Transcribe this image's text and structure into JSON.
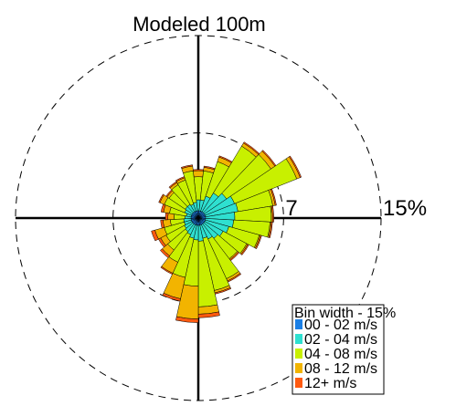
{
  "chart_data": {
    "type": "windrose",
    "title": "Modeled 100m",
    "rings": [
      {
        "value": 7,
        "label": "7"
      },
      {
        "value": 15,
        "label": "15%"
      }
    ],
    "rmax": 15,
    "directions_deg": [
      0,
      12.4,
      24.8,
      37.2,
      49.7,
      62.1,
      74.5,
      86.9,
      99.3,
      111.7,
      124.1,
      136.6,
      149.0,
      161.4,
      173.8,
      186.2,
      198.6,
      211.0,
      223.4,
      235.9,
      248.3,
      260.7,
      273.1,
      285.5,
      297.9,
      310.3,
      322.8,
      335.2,
      347.6
    ],
    "bins": [
      {
        "label": "00 - 02 m/s",
        "color": "#1a7fe6"
      },
      {
        "label": "02 - 04 m/s",
        "color": "#2fe0d0"
      },
      {
        "label": "04 - 08 m/s",
        "color": "#c8f000"
      },
      {
        "label": "08 - 12 m/s",
        "color": "#f2b400"
      },
      {
        "label": "12+ m/s",
        "color": "#ff5a10"
      }
    ],
    "cumulative_percent": [
      [
        0.6,
        1.5,
        3.4,
        3.9,
        4.0
      ],
      [
        0.6,
        1.5,
        3.9,
        4.2,
        4.3
      ],
      [
        0.6,
        1.9,
        4.9,
        5.3,
        5.4
      ],
      [
        0.6,
        2.4,
        6.9,
        7.2,
        7.3
      ],
      [
        0.6,
        2.8,
        7.2,
        7.6,
        7.7
      ],
      [
        0.6,
        3.2,
        8.7,
        9.0,
        9.1
      ],
      [
        0.6,
        3.3,
        6.2,
        6.4,
        6.5
      ],
      [
        0.6,
        3.0,
        6.0,
        6.1,
        6.2
      ],
      [
        0.6,
        2.9,
        5.9,
        6.0,
        6.1
      ],
      [
        0.6,
        2.6,
        5.2,
        5.3,
        5.4
      ],
      [
        0.6,
        2.3,
        4.5,
        4.6,
        4.7
      ],
      [
        0.6,
        2.1,
        4.2,
        4.3,
        4.4
      ],
      [
        0.6,
        1.9,
        5.5,
        5.7,
        5.8
      ],
      [
        0.6,
        1.7,
        6.1,
        6.3,
        6.4
      ],
      [
        0.6,
        1.9,
        7.3,
        7.9,
        8.2
      ],
      [
        0.6,
        1.8,
        5.6,
        8.3,
        8.6
      ],
      [
        0.6,
        1.7,
        5.0,
        6.8,
        7.0
      ],
      [
        0.6,
        1.5,
        4.0,
        5.0,
        5.1
      ],
      [
        0.6,
        1.4,
        3.3,
        3.9,
        4.1
      ],
      [
        0.6,
        1.3,
        3.0,
        3.5,
        3.7
      ],
      [
        0.6,
        1.2,
        2.9,
        3.7,
        4.0
      ],
      [
        0.6,
        1.2,
        2.3,
        2.9,
        3.1
      ],
      [
        0.6,
        1.1,
        2.0,
        2.5,
        2.7
      ],
      [
        0.6,
        1.0,
        2.4,
        2.9,
        3.1
      ],
      [
        0.6,
        1.2,
        3.0,
        3.4,
        3.5
      ],
      [
        0.6,
        1.3,
        2.9,
        3.1,
        3.2
      ],
      [
        0.6,
        1.3,
        3.2,
        3.4,
        3.5
      ],
      [
        0.6,
        1.2,
        3.3,
        3.5,
        3.6
      ],
      [
        0.6,
        1.3,
        3.9,
        4.3,
        4.4
      ]
    ],
    "legend": {
      "title": "Bin width - 15%",
      "placement": "bottom-right"
    },
    "grid": true
  }
}
